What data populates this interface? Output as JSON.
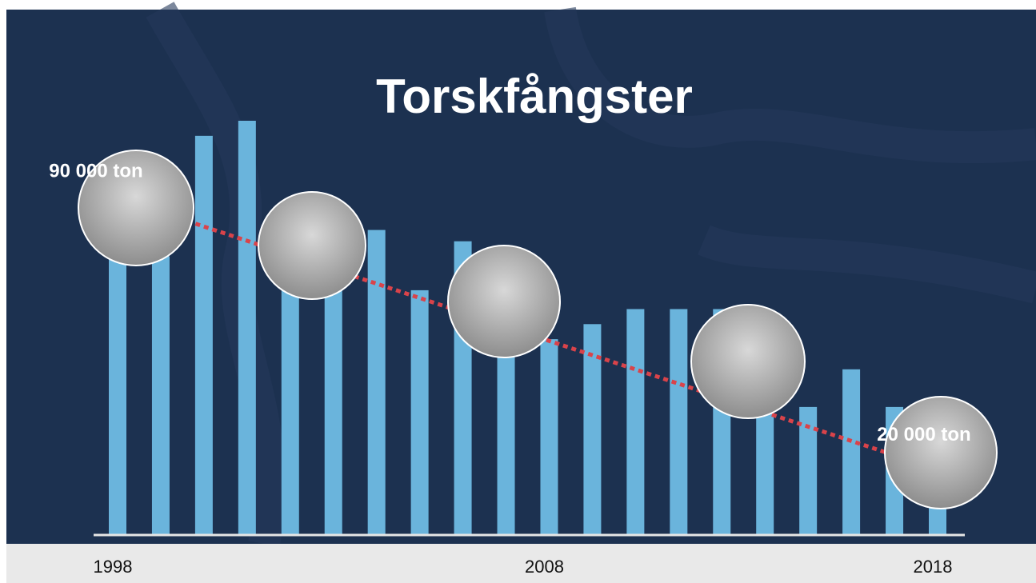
{
  "chart_data": {
    "type": "bar",
    "title": "Torskfångster",
    "categories": [
      "1998",
      null,
      null,
      null,
      null,
      null,
      null,
      null,
      null,
      null,
      "2008",
      null,
      null,
      null,
      null,
      null,
      null,
      null,
      null,
      "2018"
    ],
    "values": [
      74000,
      74000,
      106000,
      110000,
      65000,
      66000,
      81000,
      65000,
      78000,
      49000,
      52000,
      56000,
      60000,
      60000,
      60000,
      34000,
      34000,
      44000,
      34000,
      15000
    ],
    "color": "#6ab4dc",
    "ylim": [
      0,
      110000
    ],
    "annotations": [
      {
        "value": 90000,
        "label": "90 000 ton"
      },
      {
        "value": 20000,
        "label": "20 000 ton"
      }
    ],
    "trend_color": "#d9434a"
  }
}
